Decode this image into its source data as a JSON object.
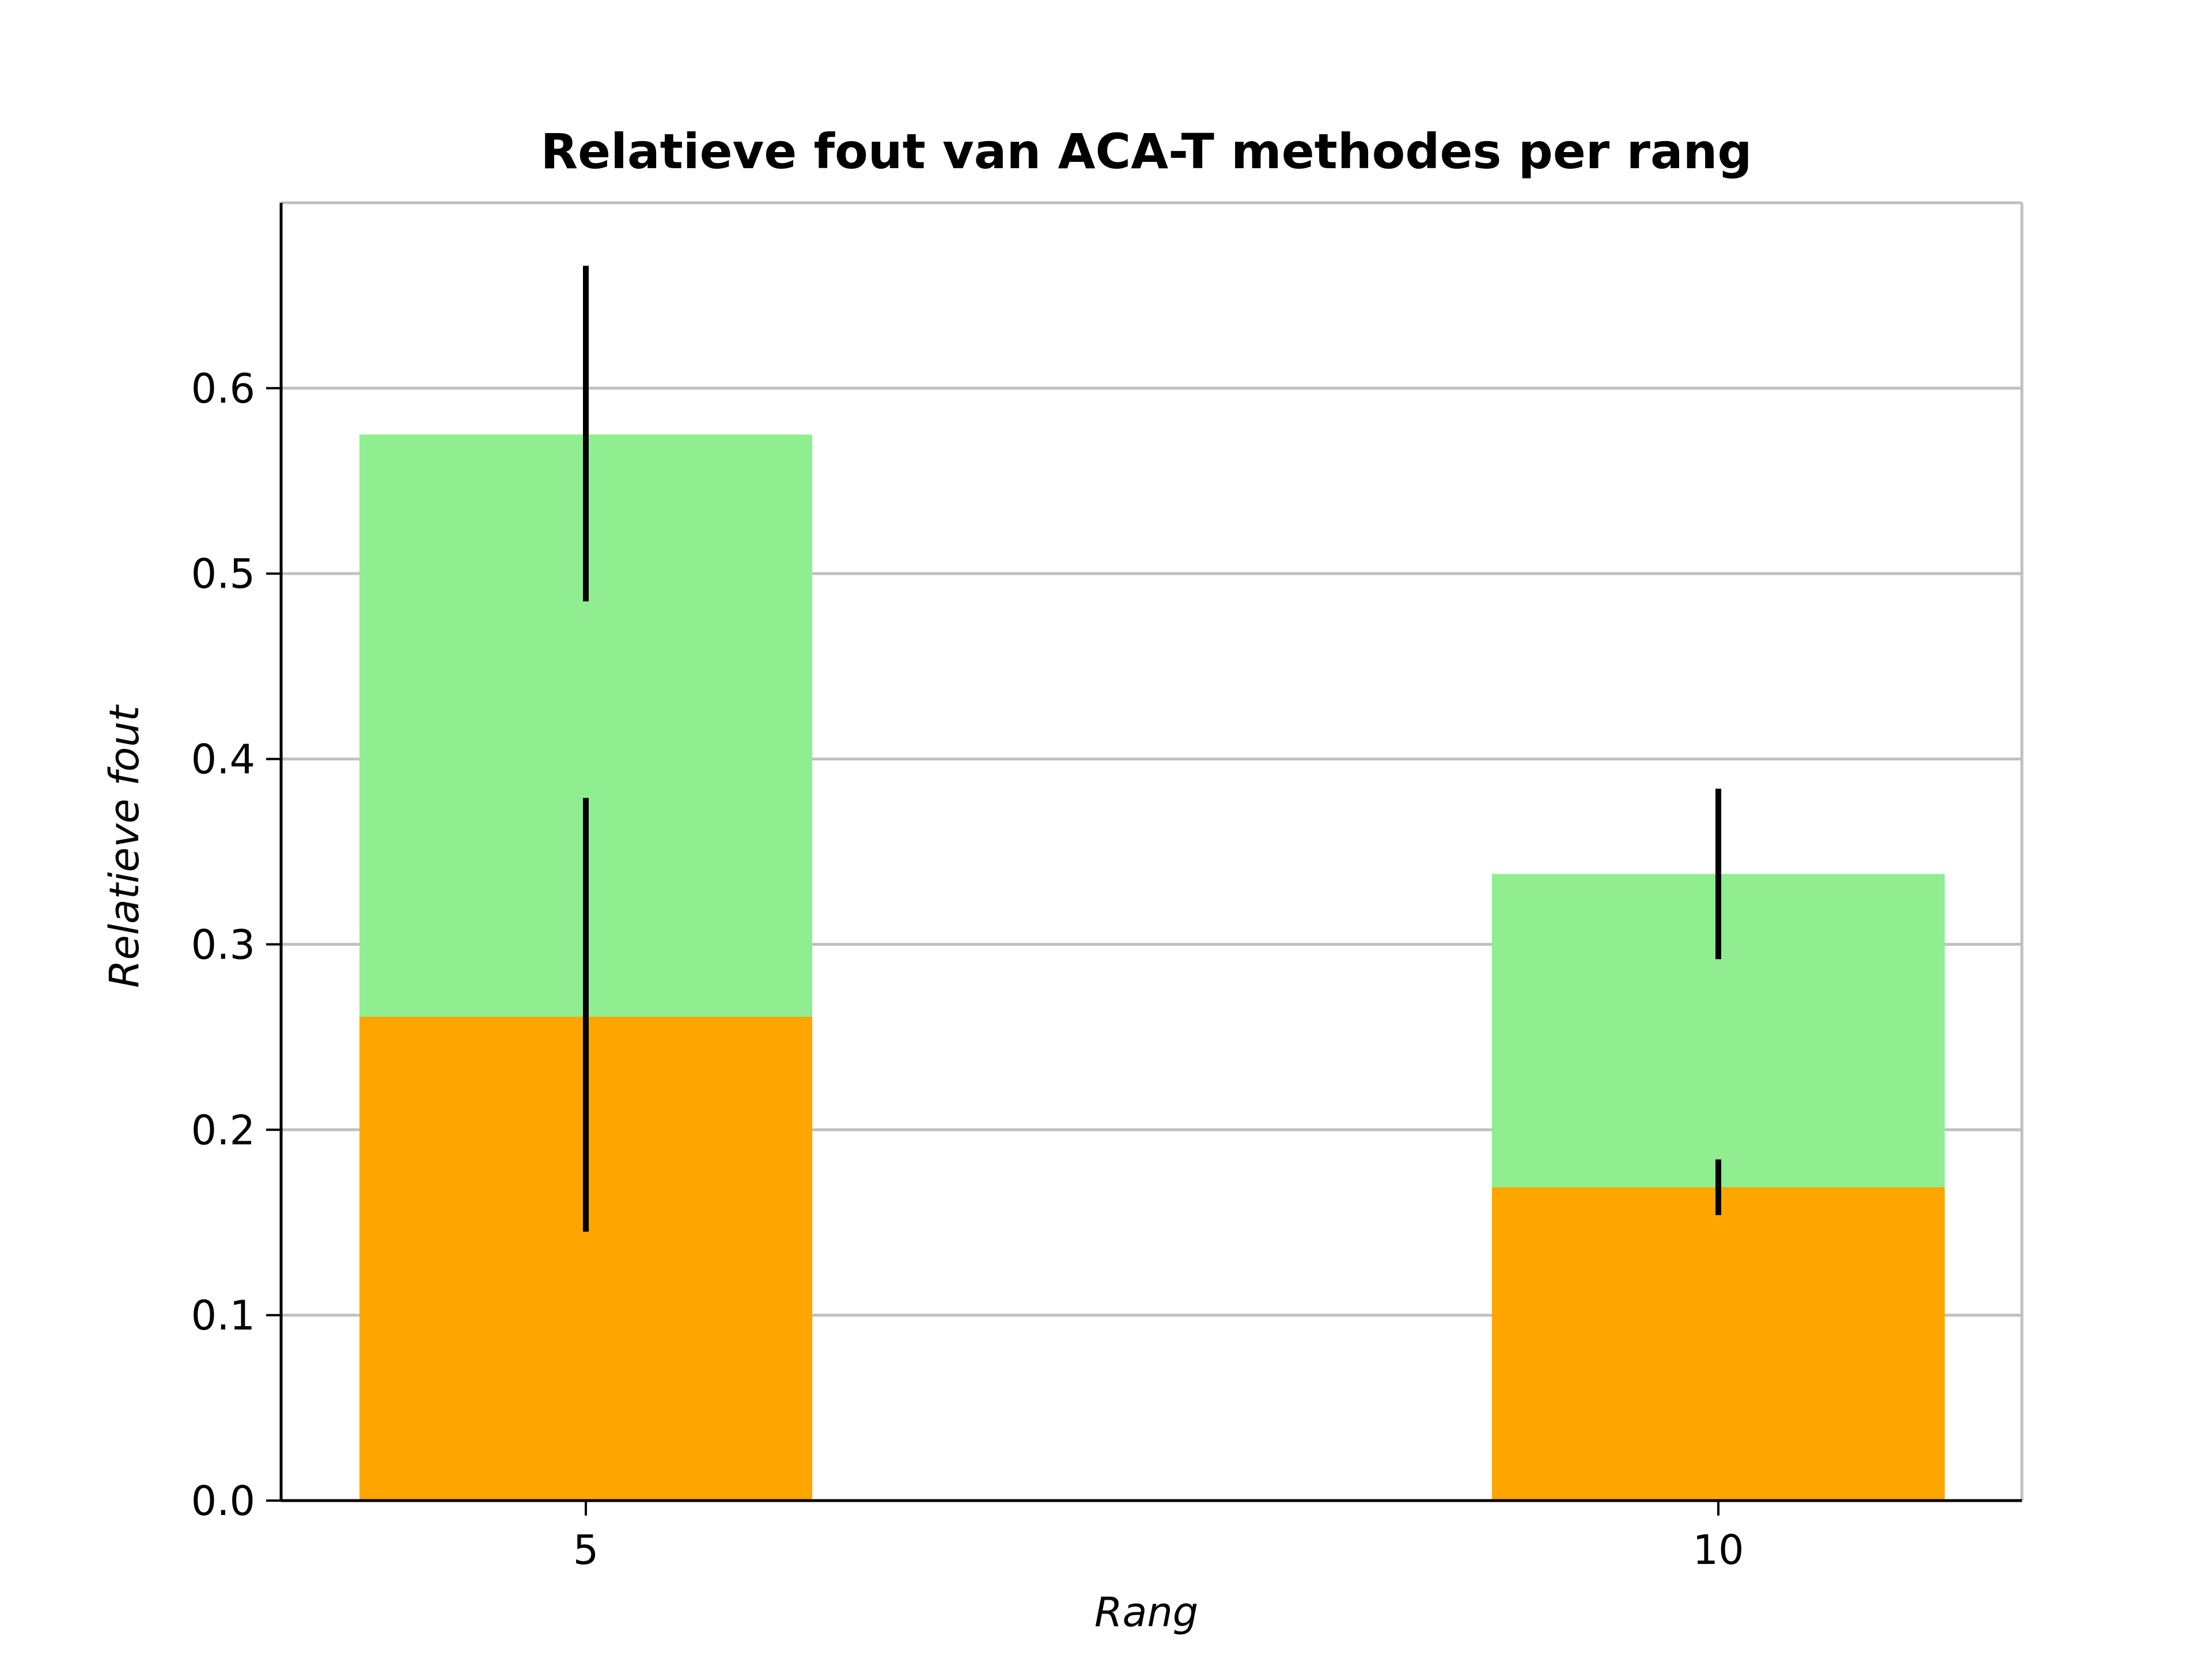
{
  "chart_data": {
    "type": "bar",
    "title": "Relatieve fout van ACA-T methodes per rang",
    "xlabel": "Rang",
    "ylabel": "Relatieve fout",
    "categories": [
      "5",
      "10"
    ],
    "ylim": [
      0,
      0.7
    ],
    "yticks": [
      "0.0",
      "0.1",
      "0.2",
      "0.3",
      "0.4",
      "0.5",
      "0.6"
    ],
    "grid": "horizontal",
    "series": [
      {
        "color": "#90EE90",
        "values": [
          0.575,
          0.338
        ],
        "err_low": [
          0.485,
          0.292
        ],
        "err_high": [
          0.666,
          0.384
        ]
      },
      {
        "color": "#FFA500",
        "values": [
          0.261,
          0.169
        ],
        "err_low": [
          0.145,
          0.154
        ],
        "err_high": [
          0.379,
          0.184
        ]
      }
    ],
    "error_bar_color": "#000000",
    "grid_color": "#C0C0C0"
  }
}
